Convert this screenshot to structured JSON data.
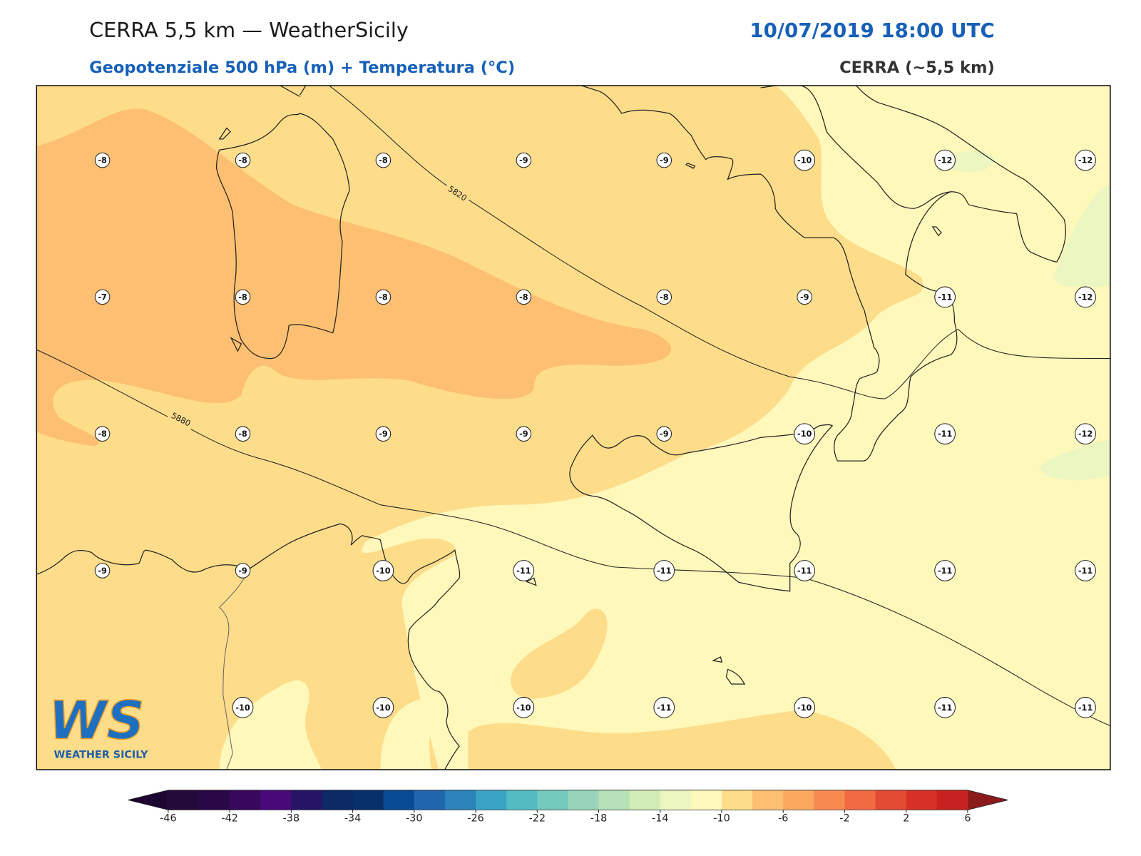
{
  "header": {
    "title": "CERRA 5,5 km — WeatherSicily",
    "datetime": "10/07/2019 18:00 UTC",
    "subtitle": "Geopotenziale 500 hPa (m) + Temperatura (°C)",
    "model": "CERRA (~5,5 km)"
  },
  "map": {
    "temperature_labels": [
      [
        -8,
        -8,
        -8,
        -9,
        -9,
        -10,
        -12,
        -12
      ],
      [
        -7,
        -8,
        -8,
        -8,
        -8,
        -9,
        -11,
        -12
      ],
      [
        -8,
        -8,
        -9,
        -9,
        -9,
        -10,
        -11,
        -12
      ],
      [
        -9,
        -9,
        -10,
        -11,
        -11,
        -11,
        -11,
        -11
      ],
      [
        null,
        -10,
        -10,
        -10,
        -11,
        -10,
        -11,
        -11
      ]
    ],
    "contours": [
      {
        "value": 5820
      },
      {
        "value": 5880
      }
    ]
  },
  "colorbar": {
    "ticks": [
      -46,
      -42,
      -38,
      -34,
      -30,
      -26,
      -22,
      -18,
      -14,
      -10,
      -6,
      -2,
      2,
      6
    ],
    "levels": [
      -46,
      -44,
      -42,
      -40,
      -38,
      -36,
      -34,
      -32,
      -30,
      -28,
      -26,
      -24,
      -22,
      -20,
      -18,
      -16,
      -14,
      -12,
      -10,
      -8,
      -6,
      -4,
      -2,
      0,
      2,
      4,
      6
    ],
    "colors": [
      "#230a3a",
      "#2a0848",
      "#37085c",
      "#470a78",
      "#261466",
      "#0d2a66",
      "#08306b",
      "#084a94",
      "#2166ac",
      "#2b83ba",
      "#3aa4c6",
      "#52bcc2",
      "#74c9bd",
      "#98d4b9",
      "#b6e0b6",
      "#d2ecb7",
      "#ecf6c0",
      "#fff8bb",
      "#fddc8a",
      "#fdbf71",
      "#fca85f",
      "#f98a4f",
      "#f16a42",
      "#e34a33",
      "#d63027",
      "#c7221f"
    ],
    "under_color": "#1e0632",
    "over_color": "#8b1a1a"
  },
  "logo": {
    "mark": "WS",
    "text": "WEATHER SICILY"
  }
}
